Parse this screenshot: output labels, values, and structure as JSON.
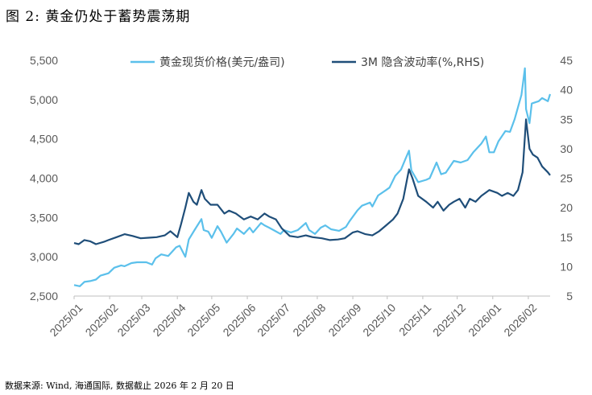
{
  "figure": {
    "title": "图 2:  黄金仍处于蓄势震荡期",
    "source": "数据来源: Wind, 海通国际, 数据截止 2026 年 2 月 20 日"
  },
  "chart_data": {
    "type": "line",
    "x_start": "2025-01-01",
    "x_end": "2026-02-20",
    "x_ticks": [
      "2025/01",
      "2025/02",
      "2025/03",
      "2025/04",
      "2025/05",
      "2025/06",
      "2025/07",
      "2025/08",
      "2025/09",
      "2025/10",
      "2025/11",
      "2025/12",
      "2026/01",
      "2026/02"
    ],
    "y_left": {
      "range": [
        2500,
        5500
      ],
      "ticks": [
        2500,
        3000,
        3500,
        4000,
        4500,
        5000,
        5500
      ],
      "tick_labels": [
        "2,500",
        "3,000",
        "3,500",
        "4,000",
        "4,500",
        "5,000",
        "5,500"
      ]
    },
    "y_right": {
      "range": [
        5,
        45
      ],
      "ticks": [
        5,
        10,
        15,
        20,
        25,
        30,
        35,
        40,
        45
      ],
      "tick_labels": [
        "5",
        "10",
        "15",
        "20",
        "25",
        "30",
        "35",
        "40",
        "45"
      ]
    },
    "grid": false,
    "legend_position": "top",
    "series": [
      {
        "name": "黄金现货价格(美元/盎司)",
        "axis": "left",
        "color": "#5bc0eb",
        "points": [
          [
            "2025-01-01",
            2640
          ],
          [
            "2025-01-06",
            2625
          ],
          [
            "2025-01-10",
            2680
          ],
          [
            "2025-01-15",
            2690
          ],
          [
            "2025-01-20",
            2710
          ],
          [
            "2025-01-24",
            2760
          ],
          [
            "2025-01-31",
            2790
          ],
          [
            "2025-02-05",
            2860
          ],
          [
            "2025-02-11",
            2890
          ],
          [
            "2025-02-14",
            2880
          ],
          [
            "2025-02-20",
            2920
          ],
          [
            "2025-02-25",
            2930
          ],
          [
            "2025-03-05",
            2930
          ],
          [
            "2025-03-10",
            2900
          ],
          [
            "2025-03-13",
            2980
          ],
          [
            "2025-03-18",
            3030
          ],
          [
            "2025-03-24",
            3010
          ],
          [
            "2025-03-31",
            3120
          ],
          [
            "2025-04-03",
            3140
          ],
          [
            "2025-04-08",
            3000
          ],
          [
            "2025-04-11",
            3220
          ],
          [
            "2025-04-16",
            3340
          ],
          [
            "2025-04-22",
            3480
          ],
          [
            "2025-04-24",
            3340
          ],
          [
            "2025-04-28",
            3320
          ],
          [
            "2025-05-01",
            3240
          ],
          [
            "2025-05-06",
            3390
          ],
          [
            "2025-05-09",
            3320
          ],
          [
            "2025-05-14",
            3180
          ],
          [
            "2025-05-20",
            3290
          ],
          [
            "2025-05-23",
            3360
          ],
          [
            "2025-05-29",
            3290
          ],
          [
            "2025-06-03",
            3370
          ],
          [
            "2025-06-06",
            3310
          ],
          [
            "2025-06-13",
            3430
          ],
          [
            "2025-06-16",
            3400
          ],
          [
            "2025-06-20",
            3370
          ],
          [
            "2025-06-25",
            3330
          ],
          [
            "2025-06-30",
            3290
          ],
          [
            "2025-07-03",
            3340
          ],
          [
            "2025-07-09",
            3310
          ],
          [
            "2025-07-15",
            3340
          ],
          [
            "2025-07-22",
            3430
          ],
          [
            "2025-07-25",
            3340
          ],
          [
            "2025-07-30",
            3290
          ],
          [
            "2025-08-04",
            3370
          ],
          [
            "2025-08-08",
            3400
          ],
          [
            "2025-08-13",
            3350
          ],
          [
            "2025-08-20",
            3330
          ],
          [
            "2025-08-26",
            3380
          ],
          [
            "2025-08-29",
            3450
          ],
          [
            "2025-09-02",
            3530
          ],
          [
            "2025-09-05",
            3590
          ],
          [
            "2025-09-09",
            3650
          ],
          [
            "2025-09-16",
            3690
          ],
          [
            "2025-09-18",
            3640
          ],
          [
            "2025-09-23",
            3780
          ],
          [
            "2025-09-30",
            3850
          ],
          [
            "2025-10-03",
            3880
          ],
          [
            "2025-10-08",
            4030
          ],
          [
            "2025-10-13",
            4110
          ],
          [
            "2025-10-17",
            4250
          ],
          [
            "2025-10-20",
            4350
          ],
          [
            "2025-10-22",
            4100
          ],
          [
            "2025-10-28",
            3950
          ],
          [
            "2025-11-04",
            3980
          ],
          [
            "2025-11-07",
            4000
          ],
          [
            "2025-11-13",
            4200
          ],
          [
            "2025-11-17",
            4050
          ],
          [
            "2025-11-21",
            4070
          ],
          [
            "2025-11-28",
            4220
          ],
          [
            "2025-12-04",
            4200
          ],
          [
            "2025-12-10",
            4230
          ],
          [
            "2025-12-15",
            4330
          ],
          [
            "2025-12-22",
            4440
          ],
          [
            "2025-12-26",
            4530
          ],
          [
            "2025-12-29",
            4330
          ],
          [
            "2026-01-02",
            4330
          ],
          [
            "2026-01-06",
            4470
          ],
          [
            "2026-01-12",
            4600
          ],
          [
            "2026-01-16",
            4590
          ],
          [
            "2026-01-20",
            4750
          ],
          [
            "2026-01-26",
            5060
          ],
          [
            "2026-01-29",
            5400
          ],
          [
            "2026-01-30",
            4880
          ],
          [
            "2026-02-02",
            4700
          ],
          [
            "2026-02-04",
            4950
          ],
          [
            "2026-02-06",
            4960
          ],
          [
            "2026-02-10",
            4980
          ],
          [
            "2026-02-13",
            5020
          ],
          [
            "2026-02-18",
            4980
          ],
          [
            "2026-02-20",
            5070
          ]
        ]
      },
      {
        "name": "3M 隐含波动率(%,RHS)",
        "axis": "right",
        "color": "#1f4e79",
        "points": [
          [
            "2025-01-01",
            14.0
          ],
          [
            "2025-01-05",
            13.8
          ],
          [
            "2025-01-10",
            14.5
          ],
          [
            "2025-01-15",
            14.3
          ],
          [
            "2025-01-20",
            13.8
          ],
          [
            "2025-01-27",
            14.2
          ],
          [
            "2025-01-31",
            14.5
          ],
          [
            "2025-02-07",
            15.0
          ],
          [
            "2025-02-14",
            15.5
          ],
          [
            "2025-02-21",
            15.2
          ],
          [
            "2025-02-28",
            14.8
          ],
          [
            "2025-03-07",
            14.9
          ],
          [
            "2025-03-14",
            15.0
          ],
          [
            "2025-03-21",
            15.3
          ],
          [
            "2025-03-26",
            16.0
          ],
          [
            "2025-04-01",
            15.0
          ],
          [
            "2025-04-04",
            17.0
          ],
          [
            "2025-04-08",
            20.0
          ],
          [
            "2025-04-11",
            22.5
          ],
          [
            "2025-04-15",
            21.0
          ],
          [
            "2025-04-18",
            20.5
          ],
          [
            "2025-04-22",
            23.0
          ],
          [
            "2025-04-25",
            21.5
          ],
          [
            "2025-04-30",
            20.5
          ],
          [
            "2025-05-06",
            20.5
          ],
          [
            "2025-05-12",
            19.0
          ],
          [
            "2025-05-16",
            19.5
          ],
          [
            "2025-05-22",
            19.0
          ],
          [
            "2025-05-29",
            18.0
          ],
          [
            "2025-06-04",
            18.5
          ],
          [
            "2025-06-10",
            18.0
          ],
          [
            "2025-06-16",
            19.0
          ],
          [
            "2025-06-20",
            18.5
          ],
          [
            "2025-06-26",
            18.0
          ],
          [
            "2025-07-01",
            16.5
          ],
          [
            "2025-07-08",
            15.2
          ],
          [
            "2025-07-15",
            15.0
          ],
          [
            "2025-07-22",
            15.3
          ],
          [
            "2025-07-28",
            15.0
          ],
          [
            "2025-08-05",
            14.8
          ],
          [
            "2025-08-12",
            14.5
          ],
          [
            "2025-08-19",
            14.6
          ],
          [
            "2025-08-25",
            14.8
          ],
          [
            "2025-09-01",
            15.8
          ],
          [
            "2025-09-05",
            16.0
          ],
          [
            "2025-09-12",
            15.5
          ],
          [
            "2025-09-18",
            15.3
          ],
          [
            "2025-09-24",
            16.0
          ],
          [
            "2025-09-30",
            17.0
          ],
          [
            "2025-10-06",
            18.0
          ],
          [
            "2025-10-10",
            19.0
          ],
          [
            "2025-10-15",
            21.5
          ],
          [
            "2025-10-20",
            26.5
          ],
          [
            "2025-10-23",
            25.0
          ],
          [
            "2025-10-28",
            22.0
          ],
          [
            "2025-11-04",
            21.0
          ],
          [
            "2025-11-10",
            20.0
          ],
          [
            "2025-11-14",
            21.0
          ],
          [
            "2025-11-19",
            19.5
          ],
          [
            "2025-11-24",
            20.5
          ],
          [
            "2025-11-28",
            21.0
          ],
          [
            "2025-12-03",
            21.5
          ],
          [
            "2025-12-08",
            20.0
          ],
          [
            "2025-12-12",
            21.5
          ],
          [
            "2025-12-17",
            21.0
          ],
          [
            "2025-12-22",
            22.0
          ],
          [
            "2025-12-29",
            23.0
          ],
          [
            "2026-01-05",
            22.5
          ],
          [
            "2026-01-09",
            22.0
          ],
          [
            "2026-01-14",
            22.5
          ],
          [
            "2026-01-19",
            22.0
          ],
          [
            "2026-01-23",
            23.0
          ],
          [
            "2026-01-27",
            26.0
          ],
          [
            "2026-01-30",
            35.0
          ],
          [
            "2026-02-02",
            30.0
          ],
          [
            "2026-02-05",
            29.0
          ],
          [
            "2026-02-09",
            28.5
          ],
          [
            "2026-02-13",
            27.0
          ],
          [
            "2026-02-18",
            26.0
          ],
          [
            "2026-02-20",
            25.5
          ]
        ]
      }
    ]
  }
}
